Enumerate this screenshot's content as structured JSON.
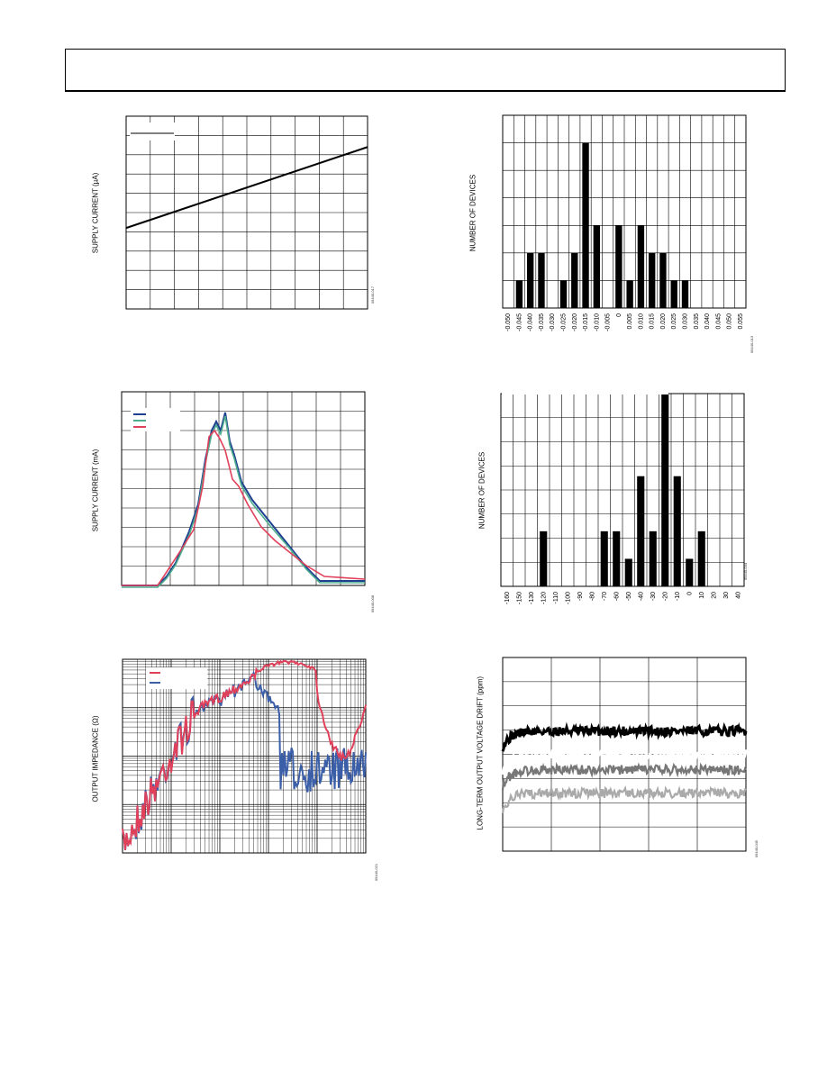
{
  "page": {},
  "figures": {
    "supply_vs_temp": {
      "ylabel": "SUPPLY CURRENT (µA)",
      "code": "09440-017"
    },
    "hist_tc": {
      "ylabel": "NUMBER OF DEVICES",
      "code": "09440-013"
    },
    "supply_vs_voltage": {
      "ylabel": "SUPPLY CURRENT (mA)",
      "code": "09440-008"
    },
    "hist_hyst": {
      "ylabel": "NUMBER OF DEVICES",
      "code": "09440-044"
    },
    "impedance": {
      "ylabel": "OUTPUT IMPEDANCE (Ω)",
      "code": "09440-021"
    },
    "drift": {
      "ylabel": "LONG-TERM OUTPUT VOLTAGE DRIFT (ppm)",
      "code": "09440-045"
    }
  },
  "chart_data": [
    {
      "type": "line",
      "id": "supply_vs_temp",
      "ylabel": "SUPPLY CURRENT (µA)",
      "grid": true,
      "legend_placement": "top-left",
      "series": [
        {
          "color": "#000000",
          "start": 0.42,
          "end": 0.84
        }
      ]
    },
    {
      "type": "bar",
      "id": "hist_tc",
      "ylabel": "NUMBER OF DEVICES",
      "grid": true,
      "categories": [
        "-0.050",
        "-0.045",
        "-0.040",
        "-0.035",
        "-0.030",
        "-0.025",
        "-0.020",
        "-0.015",
        "-0.010",
        "-0.005",
        "0",
        "0.005",
        "0.010",
        "0.015",
        "0.020",
        "0.025",
        "0.030",
        "0.035",
        "0.040",
        "0.045",
        "0.050",
        "0.055"
      ],
      "values": [
        0,
        1,
        2,
        2,
        0,
        1,
        2,
        6,
        3,
        0,
        3,
        1,
        3,
        2,
        2,
        1,
        1,
        0,
        0,
        0,
        0,
        0
      ],
      "ylim": [
        0,
        7
      ]
    },
    {
      "type": "line",
      "id": "supply_vs_voltage",
      "ylabel": "SUPPLY CURRENT (mA)",
      "grid": true,
      "legend_placement": "top-left",
      "series": [
        {
          "color": "#1f3f8f"
        },
        {
          "color": "#4fae8f"
        },
        {
          "color": "#e0405a"
        }
      ]
    },
    {
      "type": "bar",
      "id": "hist_hyst",
      "ylabel": "NUMBER OF DEVICES",
      "grid": true,
      "categories": [
        "-160",
        "-150",
        "-130",
        "-120",
        "-110",
        "-100",
        "-90",
        "-80",
        "-70",
        "-60",
        "-50",
        "-40",
        "-30",
        "-20",
        "-10",
        "0",
        "10",
        "20",
        "30",
        "40"
      ],
      "values": [
        0,
        0,
        0,
        2,
        0,
        0,
        0,
        0,
        2,
        2,
        1,
        4,
        2,
        7,
        4,
        1,
        2,
        0,
        0,
        0
      ],
      "ylim": [
        0,
        7
      ]
    },
    {
      "type": "line",
      "id": "impedance",
      "ylabel": "OUTPUT IMPEDANCE (Ω)",
      "grid": true,
      "x_scale": "log",
      "y_scale": "log",
      "legend_placement": "top-left",
      "series": [
        {
          "color": "#e0405a"
        },
        {
          "color": "#3b5ea8"
        }
      ]
    },
    {
      "type": "line",
      "id": "drift",
      "ylabel": "LONG-TERM OUTPUT VOLTAGE DRIFT (ppm)",
      "grid": true,
      "series": [
        {
          "color": "#000000",
          "level": 0.62
        },
        {
          "color": "#ffffff",
          "level": 0.5
        },
        {
          "color": "#777777",
          "level": 0.42
        },
        {
          "color": "#aaaaaa",
          "level": 0.3
        }
      ]
    }
  ]
}
